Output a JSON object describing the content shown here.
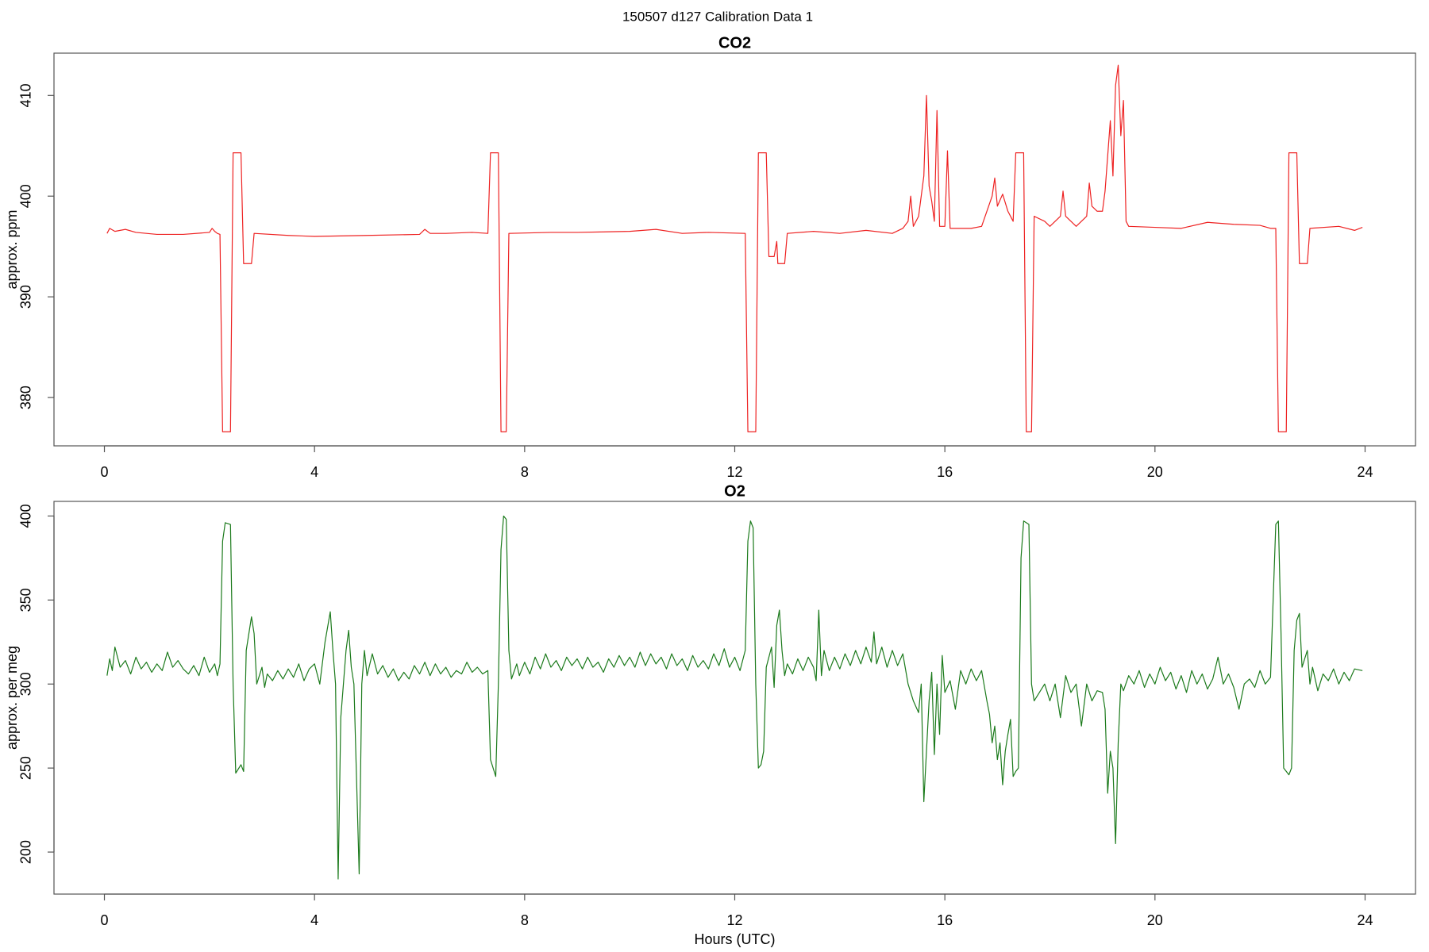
{
  "title": "150507   d127   Calibration Data 1",
  "chart_data": [
    {
      "type": "line",
      "title": "CO2",
      "ylabel": "approx. ppm",
      "xlim": [
        -0.96,
        24.96
      ],
      "xticks": [
        0,
        4,
        8,
        12,
        16,
        20,
        24
      ],
      "ylim": [
        375.2,
        414.2
      ],
      "yticks": [
        380,
        390,
        400,
        410
      ],
      "color": "#ee2222",
      "x": [
        0.05,
        0.1,
        0.2,
        0.3,
        0.4,
        0.6,
        1.0,
        1.5,
        2.0,
        2.05,
        2.1,
        2.15,
        2.2,
        2.25,
        2.4,
        2.45,
        2.6,
        2.65,
        2.8,
        2.85,
        3.5,
        4.0,
        5.0,
        6.0,
        6.1,
        6.2,
        6.5,
        7.0,
        7.3,
        7.35,
        7.5,
        7.55,
        7.65,
        7.7,
        8.5,
        9.0,
        10.0,
        10.5,
        11.0,
        11.5,
        12.2,
        12.25,
        12.4,
        12.45,
        12.6,
        12.65,
        12.75,
        12.8,
        12.82,
        12.95,
        13.0,
        13.5,
        14.0,
        14.5,
        15.0,
        15.2,
        15.3,
        15.35,
        15.4,
        15.5,
        15.6,
        15.65,
        15.7,
        15.75,
        15.8,
        15.85,
        15.9,
        16.0,
        16.05,
        16.1,
        16.5,
        16.7,
        16.8,
        16.9,
        16.95,
        17.0,
        17.1,
        17.2,
        17.3,
        17.35,
        17.5,
        17.55,
        17.65,
        17.7,
        17.9,
        18.0,
        18.2,
        18.25,
        18.3,
        18.5,
        18.7,
        18.75,
        18.8,
        18.9,
        19.0,
        19.05,
        19.1,
        19.15,
        19.2,
        19.25,
        19.3,
        19.35,
        19.4,
        19.45,
        19.5,
        20.0,
        20.5,
        21.0,
        21.5,
        22.0,
        22.2,
        22.3,
        22.35,
        22.5,
        22.55,
        22.7,
        22.75,
        22.9,
        22.95,
        23.5,
        23.8,
        23.95
      ],
      "values": [
        396.3,
        396.8,
        396.5,
        396.6,
        396.7,
        396.4,
        396.2,
        396.2,
        396.4,
        396.8,
        396.5,
        396.3,
        396.2,
        376.6,
        376.6,
        404.3,
        404.3,
        393.3,
        393.3,
        396.3,
        396.1,
        396.0,
        396.1,
        396.2,
        396.7,
        396.3,
        396.3,
        396.4,
        396.3,
        404.3,
        404.3,
        376.6,
        376.6,
        396.3,
        396.4,
        396.4,
        396.5,
        396.7,
        396.3,
        396.4,
        396.3,
        376.6,
        376.6,
        404.3,
        404.3,
        394.0,
        394.0,
        395.5,
        393.3,
        393.3,
        396.3,
        396.5,
        396.3,
        396.6,
        396.3,
        396.8,
        397.5,
        400.0,
        397.0,
        398.0,
        402.0,
        410.0,
        401.0,
        399.5,
        397.5,
        408.5,
        397.0,
        397.0,
        404.5,
        396.8,
        396.8,
        397.0,
        398.5,
        400.0,
        401.8,
        399.0,
        400.2,
        398.5,
        397.5,
        404.3,
        404.3,
        376.6,
        376.6,
        398.0,
        397.5,
        397.0,
        398.0,
        400.5,
        398.0,
        397.0,
        398.0,
        401.3,
        399.0,
        398.5,
        398.5,
        400.5,
        404.0,
        407.5,
        402.0,
        411.0,
        413.0,
        406.0,
        409.5,
        397.5,
        397.0,
        396.9,
        396.8,
        397.4,
        397.2,
        397.1,
        396.8,
        396.8,
        376.6,
        376.6,
        404.3,
        404.3,
        393.3,
        393.3,
        396.8,
        397.0,
        396.6,
        396.9
      ]
    },
    {
      "type": "line",
      "title": "O2",
      "ylabel": "approx. per meg",
      "xlabel": "Hours (UTC)",
      "xlim": [
        -0.96,
        24.96
      ],
      "xticks": [
        0,
        4,
        8,
        12,
        16,
        20,
        24
      ],
      "ylim": [
        175,
        408.7
      ],
      "yticks": [
        200,
        250,
        300,
        350,
        400
      ],
      "color": "#1b7a1b",
      "x": [
        0.05,
        0.1,
        0.15,
        0.2,
        0.3,
        0.4,
        0.5,
        0.6,
        0.7,
        0.8,
        0.9,
        1.0,
        1.1,
        1.2,
        1.3,
        1.4,
        1.5,
        1.6,
        1.7,
        1.8,
        1.9,
        2.0,
        2.1,
        2.15,
        2.2,
        2.25,
        2.3,
        2.4,
        2.45,
        2.5,
        2.6,
        2.65,
        2.7,
        2.8,
        2.85,
        2.9,
        3.0,
        3.05,
        3.1,
        3.2,
        3.3,
        3.4,
        3.5,
        3.6,
        3.7,
        3.8,
        3.9,
        4.0,
        4.1,
        4.2,
        4.3,
        4.35,
        4.4,
        4.45,
        4.5,
        4.6,
        4.65,
        4.7,
        4.75,
        4.85,
        4.9,
        4.95,
        5.0,
        5.1,
        5.2,
        5.3,
        5.4,
        5.5,
        5.6,
        5.7,
        5.8,
        5.9,
        6.0,
        6.1,
        6.2,
        6.3,
        6.4,
        6.5,
        6.6,
        6.7,
        6.8,
        6.9,
        7.0,
        7.1,
        7.2,
        7.3,
        7.35,
        7.45,
        7.5,
        7.55,
        7.6,
        7.65,
        7.7,
        7.75,
        7.85,
        7.9,
        8.0,
        8.1,
        8.2,
        8.3,
        8.4,
        8.5,
        8.6,
        8.7,
        8.8,
        8.9,
        9.0,
        9.1,
        9.2,
        9.3,
        9.4,
        9.5,
        9.6,
        9.7,
        9.8,
        9.9,
        10.0,
        10.1,
        10.2,
        10.3,
        10.4,
        10.5,
        10.6,
        10.7,
        10.8,
        10.9,
        11.0,
        11.1,
        11.2,
        11.3,
        11.4,
        11.5,
        11.6,
        11.7,
        11.8,
        11.9,
        12.0,
        12.1,
        12.2,
        12.25,
        12.3,
        12.35,
        12.4,
        12.45,
        12.5,
        12.55,
        12.6,
        12.7,
        12.75,
        12.8,
        12.85,
        12.9,
        12.95,
        13.0,
        13.1,
        13.2,
        13.3,
        13.4,
        13.5,
        13.55,
        13.6,
        13.65,
        13.7,
        13.8,
        13.9,
        14.0,
        14.1,
        14.2,
        14.3,
        14.4,
        14.5,
        14.6,
        14.65,
        14.7,
        14.8,
        14.9,
        15.0,
        15.1,
        15.2,
        15.3,
        15.4,
        15.5,
        15.55,
        15.6,
        15.7,
        15.75,
        15.8,
        15.85,
        15.9,
        15.95,
        16.0,
        16.1,
        16.2,
        16.3,
        16.4,
        16.5,
        16.6,
        16.7,
        16.8,
        16.85,
        16.9,
        16.95,
        17.0,
        17.05,
        17.1,
        17.15,
        17.2,
        17.25,
        17.3,
        17.35,
        17.4,
        17.45,
        17.5,
        17.6,
        17.65,
        17.7,
        17.8,
        17.9,
        18.0,
        18.1,
        18.2,
        18.3,
        18.4,
        18.5,
        18.6,
        18.7,
        18.8,
        18.9,
        19.0,
        19.05,
        19.1,
        19.15,
        19.2,
        19.25,
        19.3,
        19.35,
        19.4,
        19.5,
        19.6,
        19.7,
        19.8,
        19.9,
        20.0,
        20.1,
        20.2,
        20.3,
        20.4,
        20.5,
        20.6,
        20.7,
        20.8,
        20.9,
        21.0,
        21.1,
        21.2,
        21.3,
        21.4,
        21.5,
        21.6,
        21.7,
        21.8,
        21.9,
        22.0,
        22.1,
        22.2,
        22.25,
        22.3,
        22.35,
        22.4,
        22.45,
        22.55,
        22.6,
        22.65,
        22.7,
        22.75,
        22.8,
        22.9,
        22.95,
        23.0,
        23.1,
        23.2,
        23.3,
        23.4,
        23.5,
        23.6,
        23.7,
        23.8,
        23.95
      ],
      "values": [
        305,
        315,
        308,
        322,
        310,
        314,
        306,
        316,
        309,
        313,
        307,
        312,
        308,
        319,
        310,
        314,
        309,
        306,
        311,
        305,
        316,
        307,
        312,
        305,
        312,
        385,
        396,
        395,
        300,
        247,
        252,
        248,
        320,
        340,
        330,
        300,
        310,
        298,
        306,
        302,
        308,
        303,
        309,
        304,
        312,
        302,
        309,
        312,
        300,
        325,
        343,
        320,
        300,
        184,
        280,
        320,
        332,
        310,
        300,
        187,
        300,
        320,
        305,
        318,
        306,
        311,
        304,
        309,
        302,
        307,
        303,
        311,
        306,
        313,
        305,
        312,
        306,
        310,
        304,
        308,
        306,
        313,
        307,
        310,
        306,
        308,
        255,
        245,
        300,
        380,
        400,
        398,
        320,
        303,
        312,
        305,
        313,
        306,
        316,
        309,
        318,
        310,
        314,
        308,
        316,
        311,
        315,
        309,
        316,
        310,
        313,
        307,
        315,
        310,
        317,
        311,
        316,
        310,
        319,
        311,
        318,
        312,
        316,
        309,
        318,
        311,
        315,
        308,
        317,
        310,
        314,
        309,
        318,
        311,
        321,
        310,
        316,
        308,
        320,
        385,
        397,
        393,
        300,
        250,
        252,
        260,
        310,
        322,
        298,
        335,
        344,
        320,
        305,
        312,
        306,
        315,
        308,
        316,
        310,
        302,
        344,
        305,
        320,
        308,
        316,
        309,
        318,
        311,
        320,
        312,
        322,
        313,
        331,
        312,
        322,
        310,
        320,
        311,
        318,
        300,
        290,
        283,
        300,
        230,
        290,
        307,
        258,
        300,
        270,
        317,
        295,
        302,
        285,
        308,
        300,
        309,
        302,
        308,
        290,
        282,
        265,
        275,
        255,
        265,
        240,
        260,
        270,
        279,
        245,
        248,
        250,
        375,
        397,
        395,
        300,
        290,
        295,
        300,
        290,
        300,
        280,
        305,
        295,
        300,
        275,
        300,
        290,
        296,
        295,
        285,
        235,
        260,
        250,
        205,
        265,
        300,
        296,
        305,
        300,
        308,
        298,
        306,
        300,
        310,
        302,
        307,
        297,
        305,
        295,
        308,
        300,
        306,
        297,
        303,
        316,
        300,
        306,
        298,
        285,
        300,
        303,
        298,
        308,
        300,
        304,
        350,
        395,
        397,
        330,
        250,
        246,
        250,
        320,
        338,
        342,
        310,
        320,
        300,
        310,
        296,
        306,
        302,
        309,
        300,
        307,
        302,
        309,
        308
      ]
    }
  ]
}
